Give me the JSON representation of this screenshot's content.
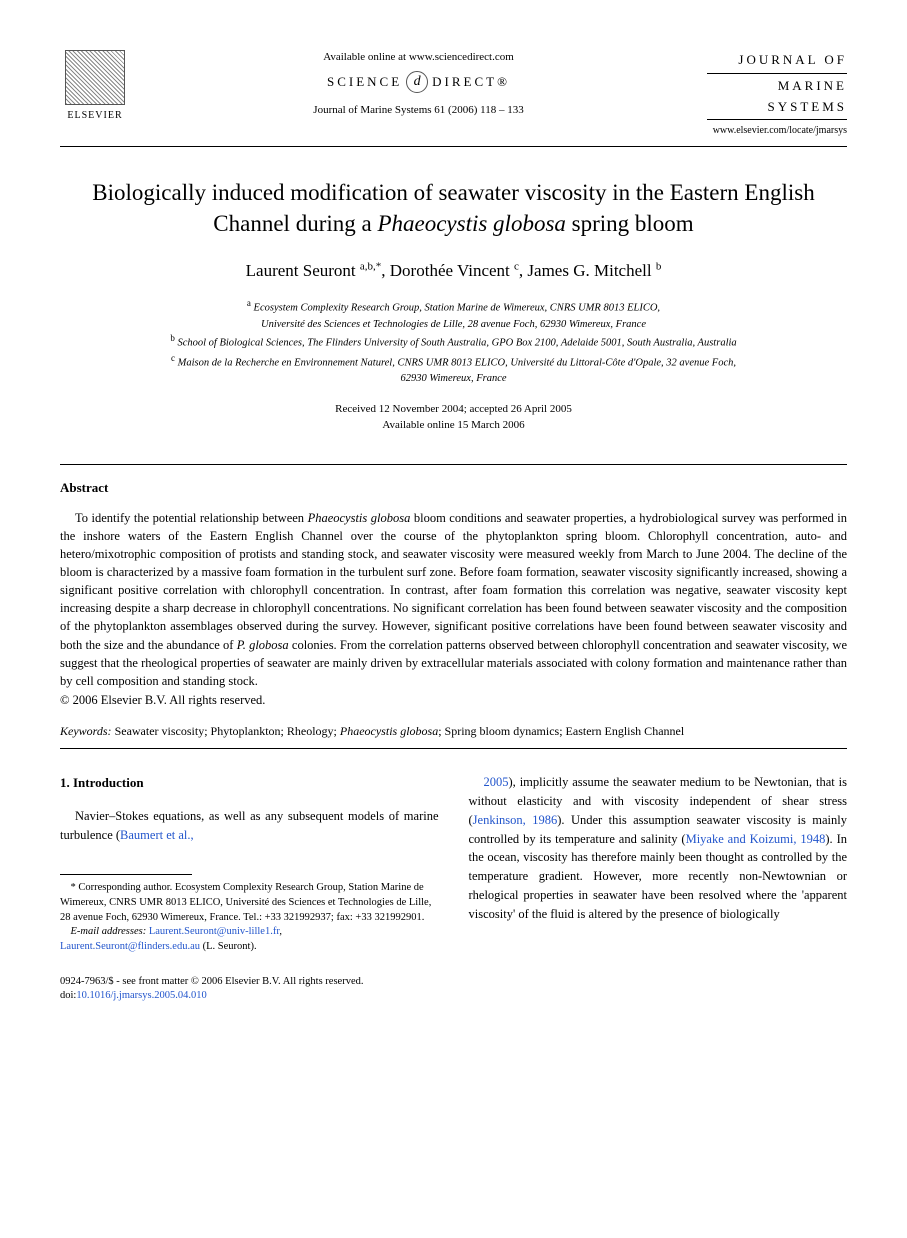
{
  "header": {
    "available_online": "Available online at www.sciencedirect.com",
    "science_direct_left": "SCIENCE",
    "science_direct_icon": "d",
    "science_direct_right": "DIRECT®",
    "journal_ref": "Journal of Marine Systems 61 (2006) 118 – 133",
    "elsevier_label": "ELSEVIER",
    "journal_line1": "JOURNAL OF",
    "journal_line2": "MARINE",
    "journal_line3": "SYSTEMS",
    "journal_url": "www.elsevier.com/locate/jmarsys"
  },
  "title_html": "Biologically induced modification of seawater viscosity in the Eastern English Channel during a <em>Phaeocystis globosa</em> spring bloom",
  "authors_html": "Laurent Seuront <sup>a,b,*</sup>, Dorothée Vincent <sup>c</sup>, James G. Mitchell <sup>b</sup>",
  "affiliations_html": "<sup>a</sup> Ecosystem Complexity Research Group, Station Marine de Wimereux, CNRS UMR 8013 ELICO,<br>Université des Sciences et Technologies de Lille, 28 avenue Foch, 62930 Wimereux, France<br><sup>b</sup> School of Biological Sciences, The Flinders University of South Australia, GPO Box 2100, Adelaide 5001, South Australia, Australia<br><sup>c</sup> Maison de la Recherche en Environnement Naturel, CNRS UMR 8013 ELICO, Université du Littoral-Côte d'Opale, 32 avenue Foch,<br>62930 Wimereux, France",
  "dates": {
    "received": "Received 12 November 2004; accepted 26 April 2005",
    "online": "Available online 15 March 2006"
  },
  "abstract": {
    "heading": "Abstract",
    "body_html": "To identify the potential relationship between <em>Phaeocystis globosa</em> bloom conditions and seawater properties, a hydrobiological survey was performed in the inshore waters of the Eastern English Channel over the course of the phytoplankton spring bloom. Chlorophyll concentration, auto- and hetero/mixotrophic composition of protists and standing stock, and seawater viscosity were measured weekly from March to June 2004. The decline of the bloom is characterized by a massive foam formation in the turbulent surf zone. Before foam formation, seawater viscosity significantly increased, showing a significant positive correlation with chlorophyll concentration. In contrast, after foam formation this correlation was negative, seawater viscosity kept increasing despite a sharp decrease in chlorophyll concentrations. No significant correlation has been found between seawater viscosity and the composition of the phytoplankton assemblages observed during the survey. However, significant positive correlations have been found between seawater viscosity and both the size and the abundance of <em>P. globosa</em> colonies. From the correlation patterns observed between chlorophyll concentration and seawater viscosity, we suggest that the rheological properties of seawater are mainly driven by extracellular materials associated with colony formation and maintenance rather than by cell composition and standing stock.",
    "copyright": "© 2006 Elsevier B.V. All rights reserved."
  },
  "keywords": {
    "label": "Keywords:",
    "text_html": "Seawater viscosity; Phytoplankton; Rheology; <em>Phaeocystis globosa</em>; Spring bloom dynamics; Eastern English Channel"
  },
  "intro": {
    "heading": "1. Introduction",
    "col1_html": "Navier–Stokes equations, as well as any subsequent models of marine turbulence (<span class=\"ref-link\">Baumert et al.,</span>",
    "col2_html": "<span class=\"ref-link\">2005</span>), implicitly assume the seawater medium to be Newtonian, that is without elasticity and with viscosity independent of shear stress (<span class=\"ref-link\">Jenkinson, 1986</span>). Under this assumption seawater viscosity is mainly controlled by its temperature and salinity (<span class=\"ref-link\">Miyake and Koizumi, 1948</span>). In the ocean, viscosity has therefore mainly been thought as controlled by the temperature gradient. However, more recently non-Newtownian or rhelogical properties in seawater have been resolved where the 'apparent viscosity' of the fluid is altered by the presence of biologically"
  },
  "footnote": {
    "corr_html": "* Corresponding author. Ecosystem Complexity Research Group, Station Marine de Wimereux, CNRS UMR 8013 ELICO, Université des Sciences et Technologies de Lille, 28 avenue Foch, 62930 Wimereux, France. Tel.: +33 321992937; fax: +33 321992901.",
    "email_label": "E-mail addresses:",
    "email1": "Laurent.Seuront@univ-lille1.fr",
    "email2": "Laurent.Seuront@flinders.edu.au",
    "email_tail": "(L. Seuront)."
  },
  "footer": {
    "issn": "0924-7963/$ - see front matter © 2006 Elsevier B.V. All rights reserved.",
    "doi_label": "doi:",
    "doi": "10.1016/j.jmarsys.2005.04.010"
  }
}
